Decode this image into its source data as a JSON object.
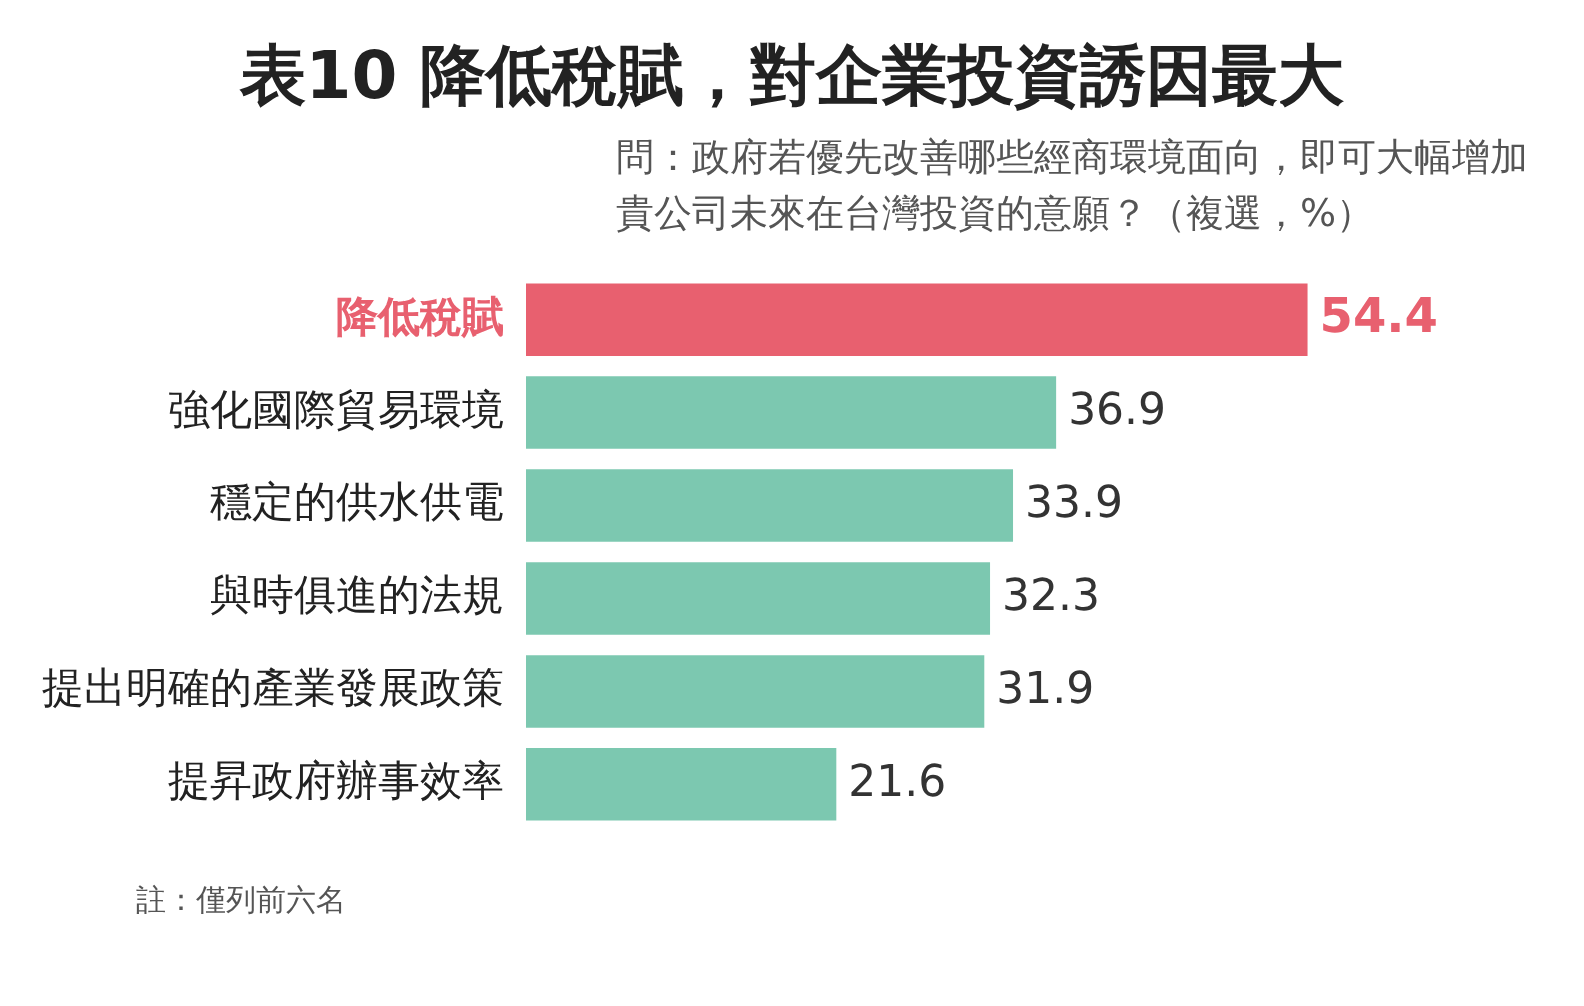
{
  "chart_data": {
    "type": "bar",
    "orientation": "horizontal",
    "title": "表10 降低稅賦，對企業投資誘因最大",
    "subtitle": "問：政府若優先改善哪些經商環境面向，即可大幅增加貴公司未來在台灣投資的意願？（複選，%）",
    "categories": [
      "降低稅賦",
      "強化國際貿易環境",
      "穩定的供水供電",
      "與時俱進的法規",
      "提出明確的產業發展政策",
      "提昇政府辦事效率"
    ],
    "values": [
      54.4,
      36.9,
      33.9,
      32.3,
      31.9,
      21.6
    ],
    "colors": [
      "#e8606f",
      "#7cc8b0",
      "#7cc8b0",
      "#7cc8b0",
      "#7cc8b0",
      "#7cc8b0"
    ],
    "data_labels": true,
    "legend": false,
    "annotations": [
      "註：僅列前六名"
    ]
  }
}
